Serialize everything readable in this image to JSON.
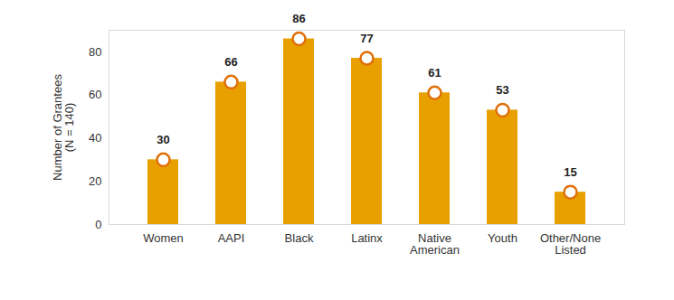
{
  "chart_data": {
    "type": "bar",
    "y_label": "Number of Grantees\n(N = 140)",
    "categories": [
      "Women",
      "AAPI",
      "Black",
      "Latinx",
      "Native American",
      "Youth",
      "Other/None Listed"
    ],
    "values": [
      30,
      66,
      86,
      77,
      61,
      53,
      15
    ],
    "color": "#E8A000",
    "marker": "circle",
    "data_labels": true,
    "ylim": [
      0,
      90
    ],
    "yticks": [
      0,
      20,
      40,
      60,
      80
    ],
    "grid": false
  }
}
